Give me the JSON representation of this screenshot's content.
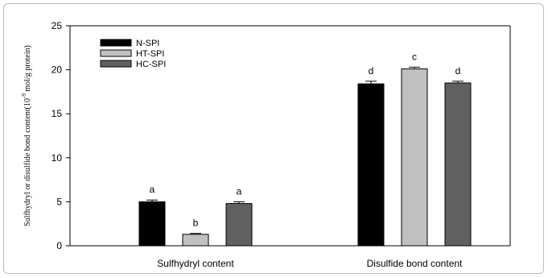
{
  "chart_data": {
    "type": "bar",
    "title": "",
    "xlabel": "",
    "ylabel": "Sulfhydryl or disulfide bond content(10",
    "ylabel_exp": "-9",
    "ylabel_suffix": " mol/g protein)",
    "ylim": [
      0,
      25
    ],
    "yticks": [
      0,
      5,
      10,
      15,
      20,
      25
    ],
    "categories": [
      "Sulfhydryl  content",
      "Disulfide bond content"
    ],
    "series": [
      {
        "name": "N-SPI",
        "color": "#000000",
        "values": [
          5.0,
          18.4
        ],
        "errors": [
          0.2,
          0.3
        ],
        "labels": [
          "a",
          "d"
        ]
      },
      {
        "name": "HT-SPI",
        "color": "#c0c0c0",
        "values": [
          1.3,
          20.1
        ],
        "errors": [
          0.1,
          0.2
        ],
        "labels": [
          "b",
          "c"
        ]
      },
      {
        "name": "HC-SPI",
        "color": "#606060",
        "values": [
          4.8,
          18.5
        ],
        "errors": [
          0.2,
          0.2
        ],
        "labels": [
          "a",
          "d"
        ]
      }
    ],
    "legend_position": "top-left",
    "grid": false
  }
}
